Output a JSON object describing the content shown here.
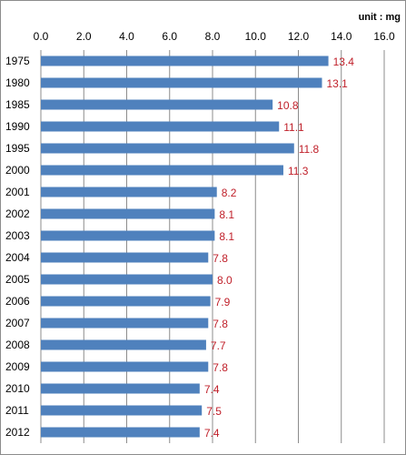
{
  "chart_data": {
    "type": "bar",
    "orientation": "horizontal",
    "unit_label": "unit : mg",
    "categories": [
      "1975",
      "1980",
      "1985",
      "1990",
      "1995",
      "2000",
      "2001",
      "2002",
      "2003",
      "2004",
      "2005",
      "2006",
      "2007",
      "2008",
      "2009",
      "2010",
      "2011",
      "2012"
    ],
    "values": [
      13.4,
      13.1,
      10.8,
      11.1,
      11.8,
      11.3,
      8.2,
      8.1,
      8.1,
      7.8,
      8.0,
      7.9,
      7.8,
      7.7,
      7.8,
      7.4,
      7.5,
      7.4
    ],
    "data_labels": [
      "13.4",
      "13.1",
      "10.8",
      "11.1",
      "11.8",
      "11.3",
      "8.2",
      "8.1",
      "8.1",
      "7.8",
      "8.0",
      "7.9",
      "7.8",
      "7.7",
      "7.8",
      "7.4",
      "7.5",
      "7.4"
    ],
    "x_ticks": [
      0,
      2,
      4,
      6,
      8,
      10,
      12,
      14,
      16
    ],
    "x_tick_labels": [
      "0.0",
      "2.0",
      "4.0",
      "6.0",
      "8.0",
      "10.0",
      "12.0",
      "14.0",
      "16.0"
    ],
    "xlim": [
      0,
      16
    ],
    "x_axis_position": "top",
    "grid": "vertical",
    "legend": "none",
    "colors": {
      "bar": "#4F81BD",
      "data_label": "#C0202A",
      "grid": "#8c8c8c"
    }
  }
}
